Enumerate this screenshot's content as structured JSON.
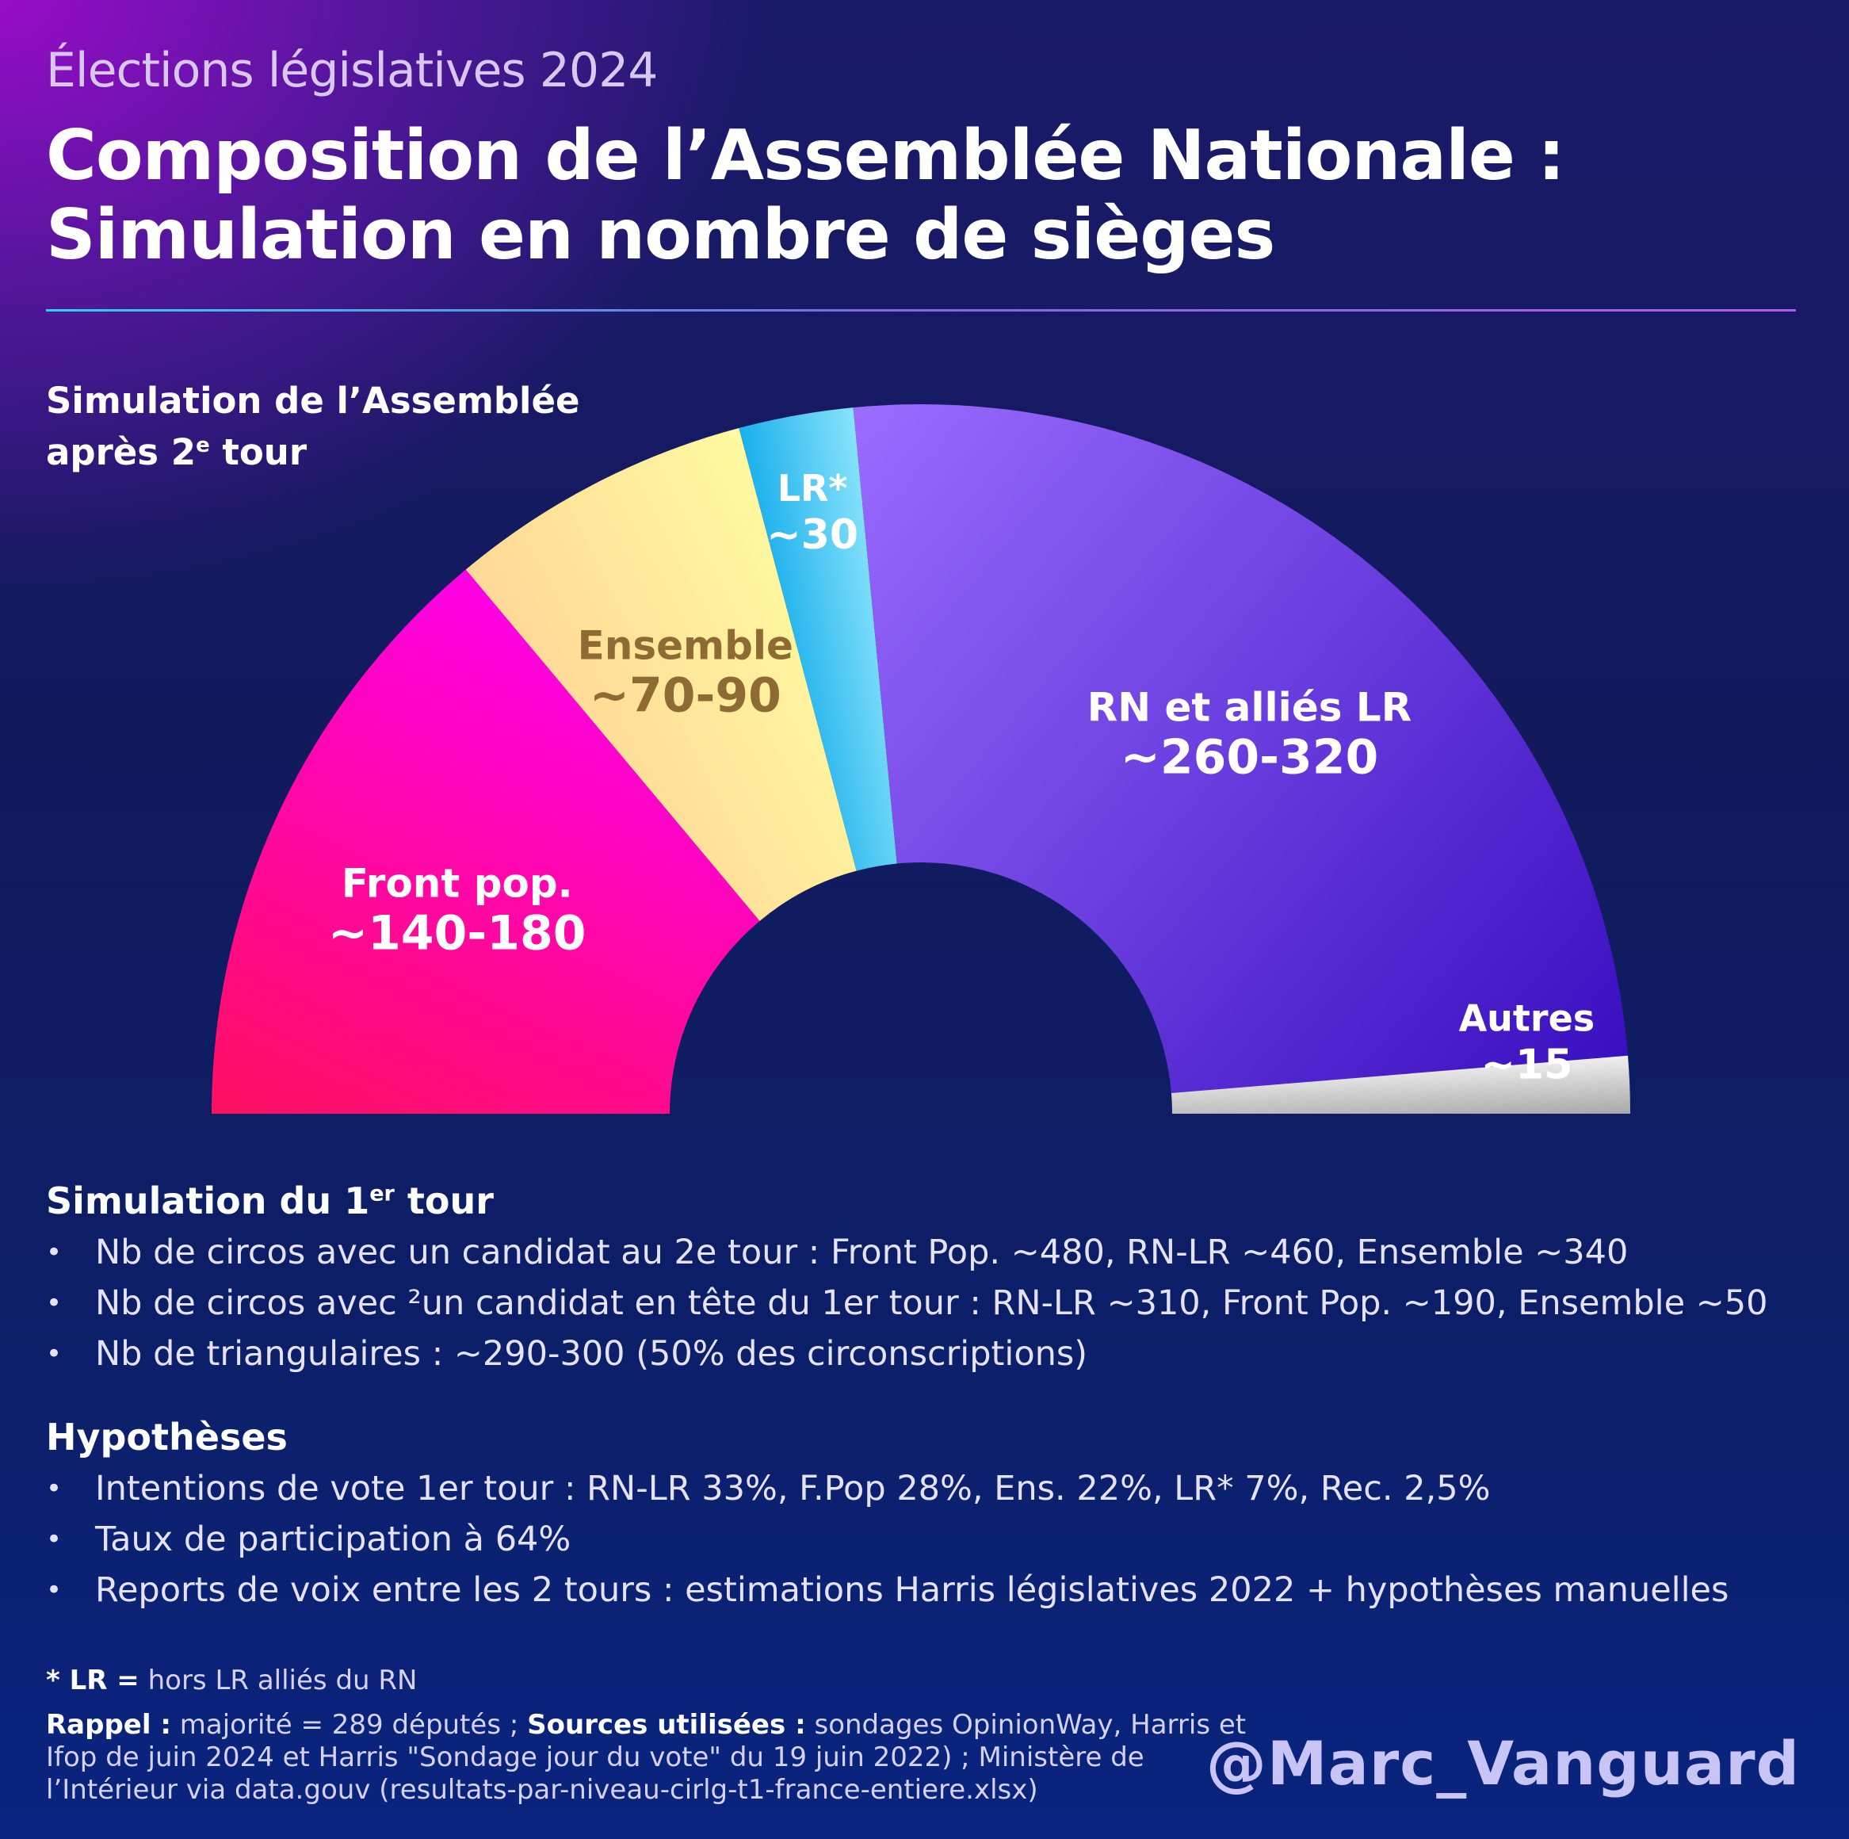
{
  "header": {
    "kicker": "Élections législatives 2024",
    "title_line1": "Composition de l’Assemblée Nationale :",
    "title_line2": "Simulation en nombre de sièges"
  },
  "chart_section": {
    "heading_line1": "Simulation de l’Assemblée",
    "heading_line2_prefix": "après 2",
    "heading_line2_sup": "e",
    "heading_line2_suffix": " tour"
  },
  "chart_data": {
    "type": "pie",
    "shape": "half-donut (hemicycle)",
    "title": "Simulation de l’Assemblée après 2e tour",
    "slices": [
      {
        "name": "Front pop.",
        "label": "~140-180",
        "value": 160,
        "color_start": "#ff1060",
        "color_end": "#ff00e6",
        "label_color": "#ffffff"
      },
      {
        "name": "Ensemble",
        "label": "~70-90",
        "value": 80,
        "color_start": "#ffd896",
        "color_end": "#fffaa0",
        "label_color": "#8f6a35"
      },
      {
        "name": "LR*",
        "label": "~30",
        "value": 30,
        "color_start": "#1ab0ec",
        "color_end": "#8ae3fb",
        "label_color": "#ffffff"
      },
      {
        "name": "RN et alliés LR",
        "label": "~260-320",
        "value": 290,
        "color_start": "#9a6cff",
        "color_end": "#3a0fbf",
        "label_color": "#ffffff"
      },
      {
        "name": "Autres",
        "label": "~15",
        "value": 15,
        "color_start": "#f0f0f0",
        "color_end": "#a8a8a8",
        "label_color": "#ffffff"
      }
    ],
    "total": 577
  },
  "first_round": {
    "heading_prefix": "Simulation du 1",
    "heading_sup": "er",
    "heading_suffix": " tour",
    "items": [
      "Nb de circos avec un candidat au 2e tour : Front Pop. ~480, RN-LR ~460, Ensemble ~340",
      "Nb de circos avec ²un candidat en tête du 1er tour : RN-LR ~310, Front Pop. ~190, Ensemble ~50",
      "Nb de triangulaires : ~290-300 (50% des circonscriptions)"
    ]
  },
  "hypotheses": {
    "heading": "Hypothèses",
    "items": [
      "Intentions de vote 1er tour : RN-LR 33%, F.Pop 28%, Ens. 22%, LR* 7%, Rec. 2,5%",
      "Taux de participation à 64%",
      "Reports de voix entre les 2 tours : estimations Harris législatives 2022 + hypothèses manuelles"
    ]
  },
  "footnotes": {
    "lr_key": "* LR =",
    "lr_text": " hors LR alliés du RN",
    "rappel_key": "Rappel :",
    "rappel_text": " majorité = 289 députés ; ",
    "sources_key": "Sources utilisées :",
    "sources_line1": " sondages OpinionWay, Harris et",
    "sources_line2": "Ifop de juin 2024 et Harris \"Sondage jour du vote\" du 19 juin 2022) ; Ministère de",
    "sources_line3": "l’Intérieur via data.gouv (resultats-par-niveau-cirlg-t1-france-entiere.xlsx)"
  },
  "signature": "@Marc_Vanguard"
}
